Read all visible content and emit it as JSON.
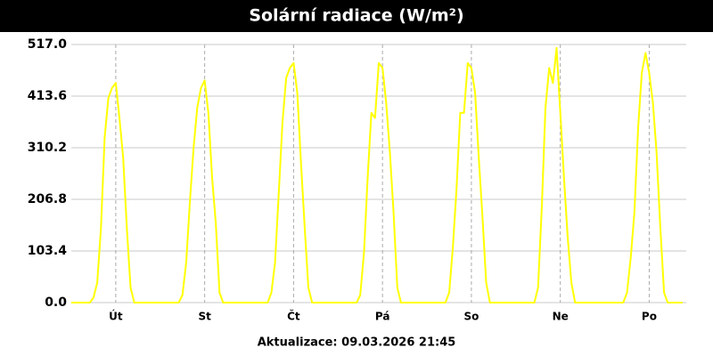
{
  "chart_data": {
    "type": "line",
    "title": "Solární radiace (W/m²)",
    "footer": "Aktualizace: 09.03.2026 21:45",
    "color": "#ffff00",
    "grid": true,
    "xlim": [
      0,
      166
    ],
    "xticks": [
      {
        "value": 12,
        "label": "Út"
      },
      {
        "value": 36,
        "label": "St"
      },
      {
        "value": 60,
        "label": "Čt"
      },
      {
        "value": 84,
        "label": "Pá"
      },
      {
        "value": 108,
        "label": "So"
      },
      {
        "value": 132,
        "label": "Ne"
      },
      {
        "value": 156,
        "label": "Po"
      }
    ],
    "ylim": [
      0,
      517
    ],
    "yticks": [
      {
        "value": 0,
        "label": "0.0"
      },
      {
        "value": 103.4,
        "label": "103.4"
      },
      {
        "value": 206.8,
        "label": "206.8"
      },
      {
        "value": 310.2,
        "label": "310.2"
      },
      {
        "value": 413.6,
        "label": "413.6"
      },
      {
        "value": 517,
        "label": "517.0"
      }
    ],
    "x": [
      0,
      1,
      2,
      3,
      4,
      5,
      6,
      7,
      8,
      9,
      10,
      11,
      12,
      13,
      14,
      15,
      16,
      17,
      18,
      19,
      20,
      21,
      22,
      23,
      24,
      25,
      26,
      27,
      28,
      29,
      30,
      31,
      32,
      33,
      34,
      35,
      36,
      37,
      38,
      39,
      40,
      41,
      42,
      43,
      44,
      45,
      46,
      47,
      48,
      49,
      50,
      51,
      52,
      53,
      54,
      55,
      56,
      57,
      58,
      59,
      60,
      61,
      62,
      63,
      64,
      65,
      66,
      67,
      68,
      69,
      70,
      71,
      72,
      73,
      74,
      75,
      76,
      77,
      78,
      79,
      80,
      81,
      82,
      83,
      84,
      85,
      86,
      87,
      88,
      89,
      90,
      91,
      92,
      93,
      94,
      95,
      96,
      97,
      98,
      99,
      100,
      101,
      102,
      103,
      104,
      105,
      106,
      107,
      108,
      109,
      110,
      111,
      112,
      113,
      114,
      115,
      116,
      117,
      118,
      119,
      120,
      121,
      122,
      123,
      124,
      125,
      126,
      127,
      128,
      129,
      130,
      131,
      132,
      133,
      134,
      135,
      136,
      137,
      138,
      139,
      140,
      141,
      142,
      143,
      144,
      145,
      146,
      147,
      148,
      149,
      150,
      151,
      152,
      153,
      154,
      155,
      156,
      157,
      158,
      159,
      160,
      161,
      162,
      163,
      164,
      165
    ],
    "values": [
      0,
      0,
      0,
      0,
      0,
      0,
      10,
      40,
      150,
      330,
      410,
      430,
      440,
      370,
      290,
      150,
      30,
      0,
      0,
      0,
      0,
      0,
      0,
      0,
      0,
      0,
      0,
      0,
      0,
      0,
      15,
      80,
      200,
      310,
      390,
      430,
      445,
      380,
      250,
      160,
      20,
      0,
      0,
      0,
      0,
      0,
      0,
      0,
      0,
      0,
      0,
      0,
      0,
      0,
      20,
      80,
      220,
      360,
      450,
      470,
      480,
      420,
      280,
      150,
      30,
      0,
      0,
      0,
      0,
      0,
      0,
      0,
      0,
      0,
      0,
      0,
      0,
      0,
      15,
      100,
      250,
      380,
      370,
      480,
      470,
      400,
      300,
      180,
      30,
      0,
      0,
      0,
      0,
      0,
      0,
      0,
      0,
      0,
      0,
      0,
      0,
      0,
      20,
      110,
      230,
      380,
      380,
      480,
      470,
      420,
      290,
      170,
      40,
      0,
      0,
      0,
      0,
      0,
      0,
      0,
      0,
      0,
      0,
      0,
      0,
      0,
      30,
      190,
      390,
      470,
      440,
      510,
      380,
      250,
      130,
      40,
      0,
      0,
      0,
      0,
      0,
      0,
      0,
      0,
      0,
      0,
      0,
      0,
      0,
      0,
      20,
      90,
      180,
      350,
      460,
      500,
      460,
      400,
      300,
      150,
      20,
      0,
      0,
      0,
      0,
      0
    ]
  }
}
